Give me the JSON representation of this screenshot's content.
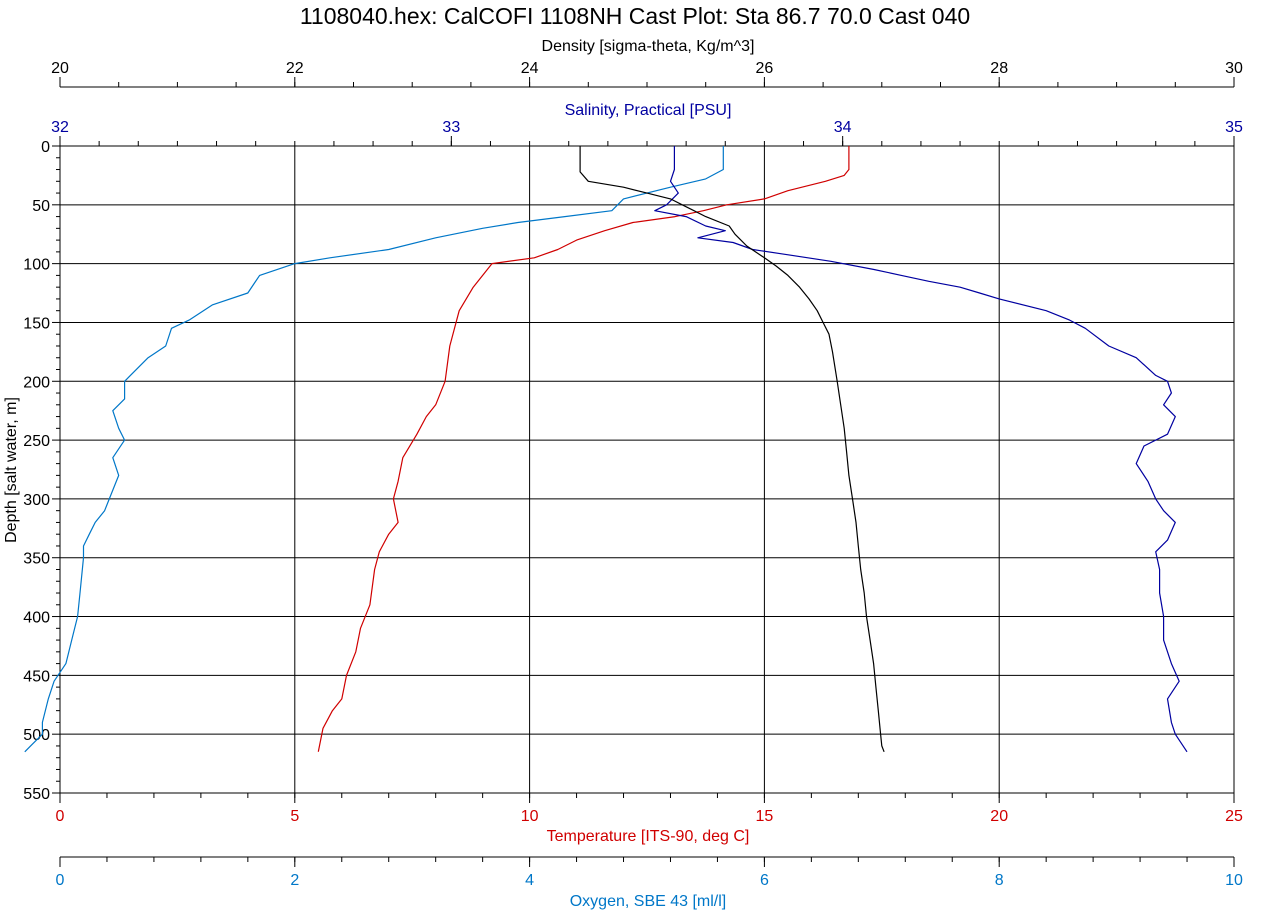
{
  "chart_data": {
    "type": "line",
    "title": "1108040.hex: CalCOFI 1108NH Cast Plot: Sta 86.7 70.0  Cast 040",
    "y_axis": {
      "label": "Depth [salt water, m]",
      "range": [
        0,
        550
      ],
      "inverted": true,
      "ticks": [
        "0",
        "50",
        "100",
        "150",
        "200",
        "250",
        "300",
        "350",
        "400",
        "450",
        "500",
        "550"
      ]
    },
    "x_axes": [
      {
        "id": "density",
        "label": "Density [sigma-theta, Kg/m^3]",
        "range": [
          20,
          30
        ],
        "color": "#000000",
        "position": "top-outer",
        "ticks": [
          "20",
          "22",
          "24",
          "26",
          "28",
          "30"
        ]
      },
      {
        "id": "salinity",
        "label": "Salinity, Practical [PSU]",
        "range": [
          32,
          35
        ],
        "color": "#0000a0",
        "position": "top-inner",
        "ticks": [
          "32",
          "33",
          "34",
          "35"
        ]
      },
      {
        "id": "temperature",
        "label": "Temperature [ITS-90, deg C]",
        "range": [
          0,
          25
        ],
        "color": "#d00000",
        "position": "bottom-inner",
        "ticks": [
          "0",
          "5",
          "10",
          "15",
          "20",
          "25"
        ]
      },
      {
        "id": "oxygen",
        "label": "Oxygen, SBE 43 [ml/l]",
        "range": [
          0,
          10
        ],
        "color": "#0077c8",
        "position": "bottom-outer",
        "ticks": [
          "0",
          "2",
          "4",
          "6",
          "8",
          "10"
        ]
      }
    ],
    "grid": true,
    "series": [
      {
        "axis": "temperature",
        "color": "#d00000",
        "points": [
          [
            16.8,
            0
          ],
          [
            16.8,
            20
          ],
          [
            16.7,
            25
          ],
          [
            16.3,
            30
          ],
          [
            15.5,
            38
          ],
          [
            15,
            45
          ],
          [
            14.2,
            50
          ],
          [
            13.7,
            55
          ],
          [
            13.1,
            60
          ],
          [
            12.2,
            65
          ],
          [
            11.6,
            72
          ],
          [
            11,
            80
          ],
          [
            10.6,
            88
          ],
          [
            10.1,
            95
          ],
          [
            9.2,
            100
          ],
          [
            8.8,
            120
          ],
          [
            8.5,
            140
          ],
          [
            8.4,
            155
          ],
          [
            8.3,
            170
          ],
          [
            8.2,
            200
          ],
          [
            8,
            220
          ],
          [
            7.8,
            230
          ],
          [
            7.6,
            245
          ],
          [
            7.3,
            265
          ],
          [
            7.2,
            285
          ],
          [
            7.1,
            300
          ],
          [
            7.2,
            320
          ],
          [
            7,
            330
          ],
          [
            6.8,
            345
          ],
          [
            6.7,
            360
          ],
          [
            6.6,
            390
          ],
          [
            6.4,
            410
          ],
          [
            6.3,
            430
          ],
          [
            6.1,
            450
          ],
          [
            6,
            470
          ],
          [
            5.8,
            480
          ],
          [
            5.6,
            495
          ],
          [
            5.5,
            515
          ]
        ]
      },
      {
        "axis": "oxygen",
        "color": "#0077c8",
        "points": [
          [
            5.65,
            0
          ],
          [
            5.65,
            20
          ],
          [
            5.5,
            28
          ],
          [
            5.2,
            35
          ],
          [
            4.8,
            45
          ],
          [
            4.7,
            55
          ],
          [
            4.3,
            60
          ],
          [
            3.9,
            65
          ],
          [
            3.6,
            70
          ],
          [
            3.2,
            78
          ],
          [
            2.8,
            88
          ],
          [
            2.3,
            95
          ],
          [
            2,
            100
          ],
          [
            1.7,
            110
          ],
          [
            1.6,
            125
          ],
          [
            1.3,
            135
          ],
          [
            1.1,
            148
          ],
          [
            0.95,
            155
          ],
          [
            0.9,
            170
          ],
          [
            0.75,
            180
          ],
          [
            0.6,
            195
          ],
          [
            0.55,
            200
          ],
          [
            0.55,
            215
          ],
          [
            0.45,
            225
          ],
          [
            0.5,
            240
          ],
          [
            0.55,
            250
          ],
          [
            0.45,
            265
          ],
          [
            0.5,
            280
          ],
          [
            0.42,
            300
          ],
          [
            0.38,
            310
          ],
          [
            0.3,
            320
          ],
          [
            0.25,
            330
          ],
          [
            0.2,
            340
          ],
          [
            0.2,
            350
          ],
          [
            0.17,
            380
          ],
          [
            0.15,
            400
          ],
          [
            0.1,
            420
          ],
          [
            0.05,
            440
          ],
          [
            -0.05,
            455
          ],
          [
            -0.1,
            470
          ],
          [
            -0.15,
            490
          ],
          [
            -0.15,
            500
          ],
          [
            -0.25,
            510
          ],
          [
            -0.3,
            515
          ]
        ]
      },
      {
        "axis": "salinity",
        "color": "#0000a0",
        "points": [
          [
            33.57,
            0
          ],
          [
            33.57,
            20
          ],
          [
            33.56,
            30
          ],
          [
            33.58,
            40
          ],
          [
            33.55,
            50
          ],
          [
            33.52,
            55
          ],
          [
            33.6,
            60
          ],
          [
            33.65,
            68
          ],
          [
            33.7,
            72
          ],
          [
            33.63,
            78
          ],
          [
            33.72,
            82
          ],
          [
            33.77,
            88
          ],
          [
            33.85,
            92
          ],
          [
            33.97,
            98
          ],
          [
            34.08,
            105
          ],
          [
            34.15,
            110
          ],
          [
            34.22,
            115
          ],
          [
            34.3,
            120
          ],
          [
            34.35,
            125
          ],
          [
            34.4,
            130
          ],
          [
            34.52,
            140
          ],
          [
            34.58,
            148
          ],
          [
            34.62,
            155
          ],
          [
            34.68,
            170
          ],
          [
            34.75,
            180
          ],
          [
            34.8,
            195
          ],
          [
            34.83,
            200
          ],
          [
            34.84,
            210
          ],
          [
            34.82,
            220
          ],
          [
            34.85,
            230
          ],
          [
            34.83,
            245
          ],
          [
            34.77,
            255
          ],
          [
            34.75,
            270
          ],
          [
            34.78,
            285
          ],
          [
            34.8,
            300
          ],
          [
            34.82,
            310
          ],
          [
            34.85,
            320
          ],
          [
            34.83,
            335
          ],
          [
            34.8,
            345
          ],
          [
            34.81,
            360
          ],
          [
            34.81,
            380
          ],
          [
            34.82,
            400
          ],
          [
            34.82,
            420
          ],
          [
            34.84,
            440
          ],
          [
            34.86,
            455
          ],
          [
            34.83,
            470
          ],
          [
            34.84,
            490
          ],
          [
            34.85,
            500
          ],
          [
            34.87,
            510
          ],
          [
            34.88,
            515
          ]
        ]
      },
      {
        "axis": "density",
        "color": "#000000",
        "points": [
          [
            24.43,
            0
          ],
          [
            24.43,
            22
          ],
          [
            24.5,
            30
          ],
          [
            24.8,
            35
          ],
          [
            25,
            40
          ],
          [
            25.2,
            45
          ],
          [
            25.3,
            50
          ],
          [
            25.4,
            55
          ],
          [
            25.5,
            60
          ],
          [
            25.7,
            68
          ],
          [
            25.75,
            75
          ],
          [
            25.85,
            85
          ],
          [
            26,
            95
          ],
          [
            26.1,
            102
          ],
          [
            26.2,
            110
          ],
          [
            26.3,
            120
          ],
          [
            26.38,
            130
          ],
          [
            26.45,
            140
          ],
          [
            26.5,
            150
          ],
          [
            26.55,
            160
          ],
          [
            26.58,
            175
          ],
          [
            26.62,
            200
          ],
          [
            26.65,
            220
          ],
          [
            26.68,
            240
          ],
          [
            26.7,
            260
          ],
          [
            26.72,
            280
          ],
          [
            26.75,
            300
          ],
          [
            26.78,
            320
          ],
          [
            26.8,
            340
          ],
          [
            26.82,
            360
          ],
          [
            26.85,
            380
          ],
          [
            26.87,
            400
          ],
          [
            26.9,
            420
          ],
          [
            26.93,
            440
          ],
          [
            26.95,
            460
          ],
          [
            26.97,
            480
          ],
          [
            26.99,
            500
          ],
          [
            27,
            510
          ],
          [
            27.02,
            515
          ]
        ]
      }
    ]
  }
}
